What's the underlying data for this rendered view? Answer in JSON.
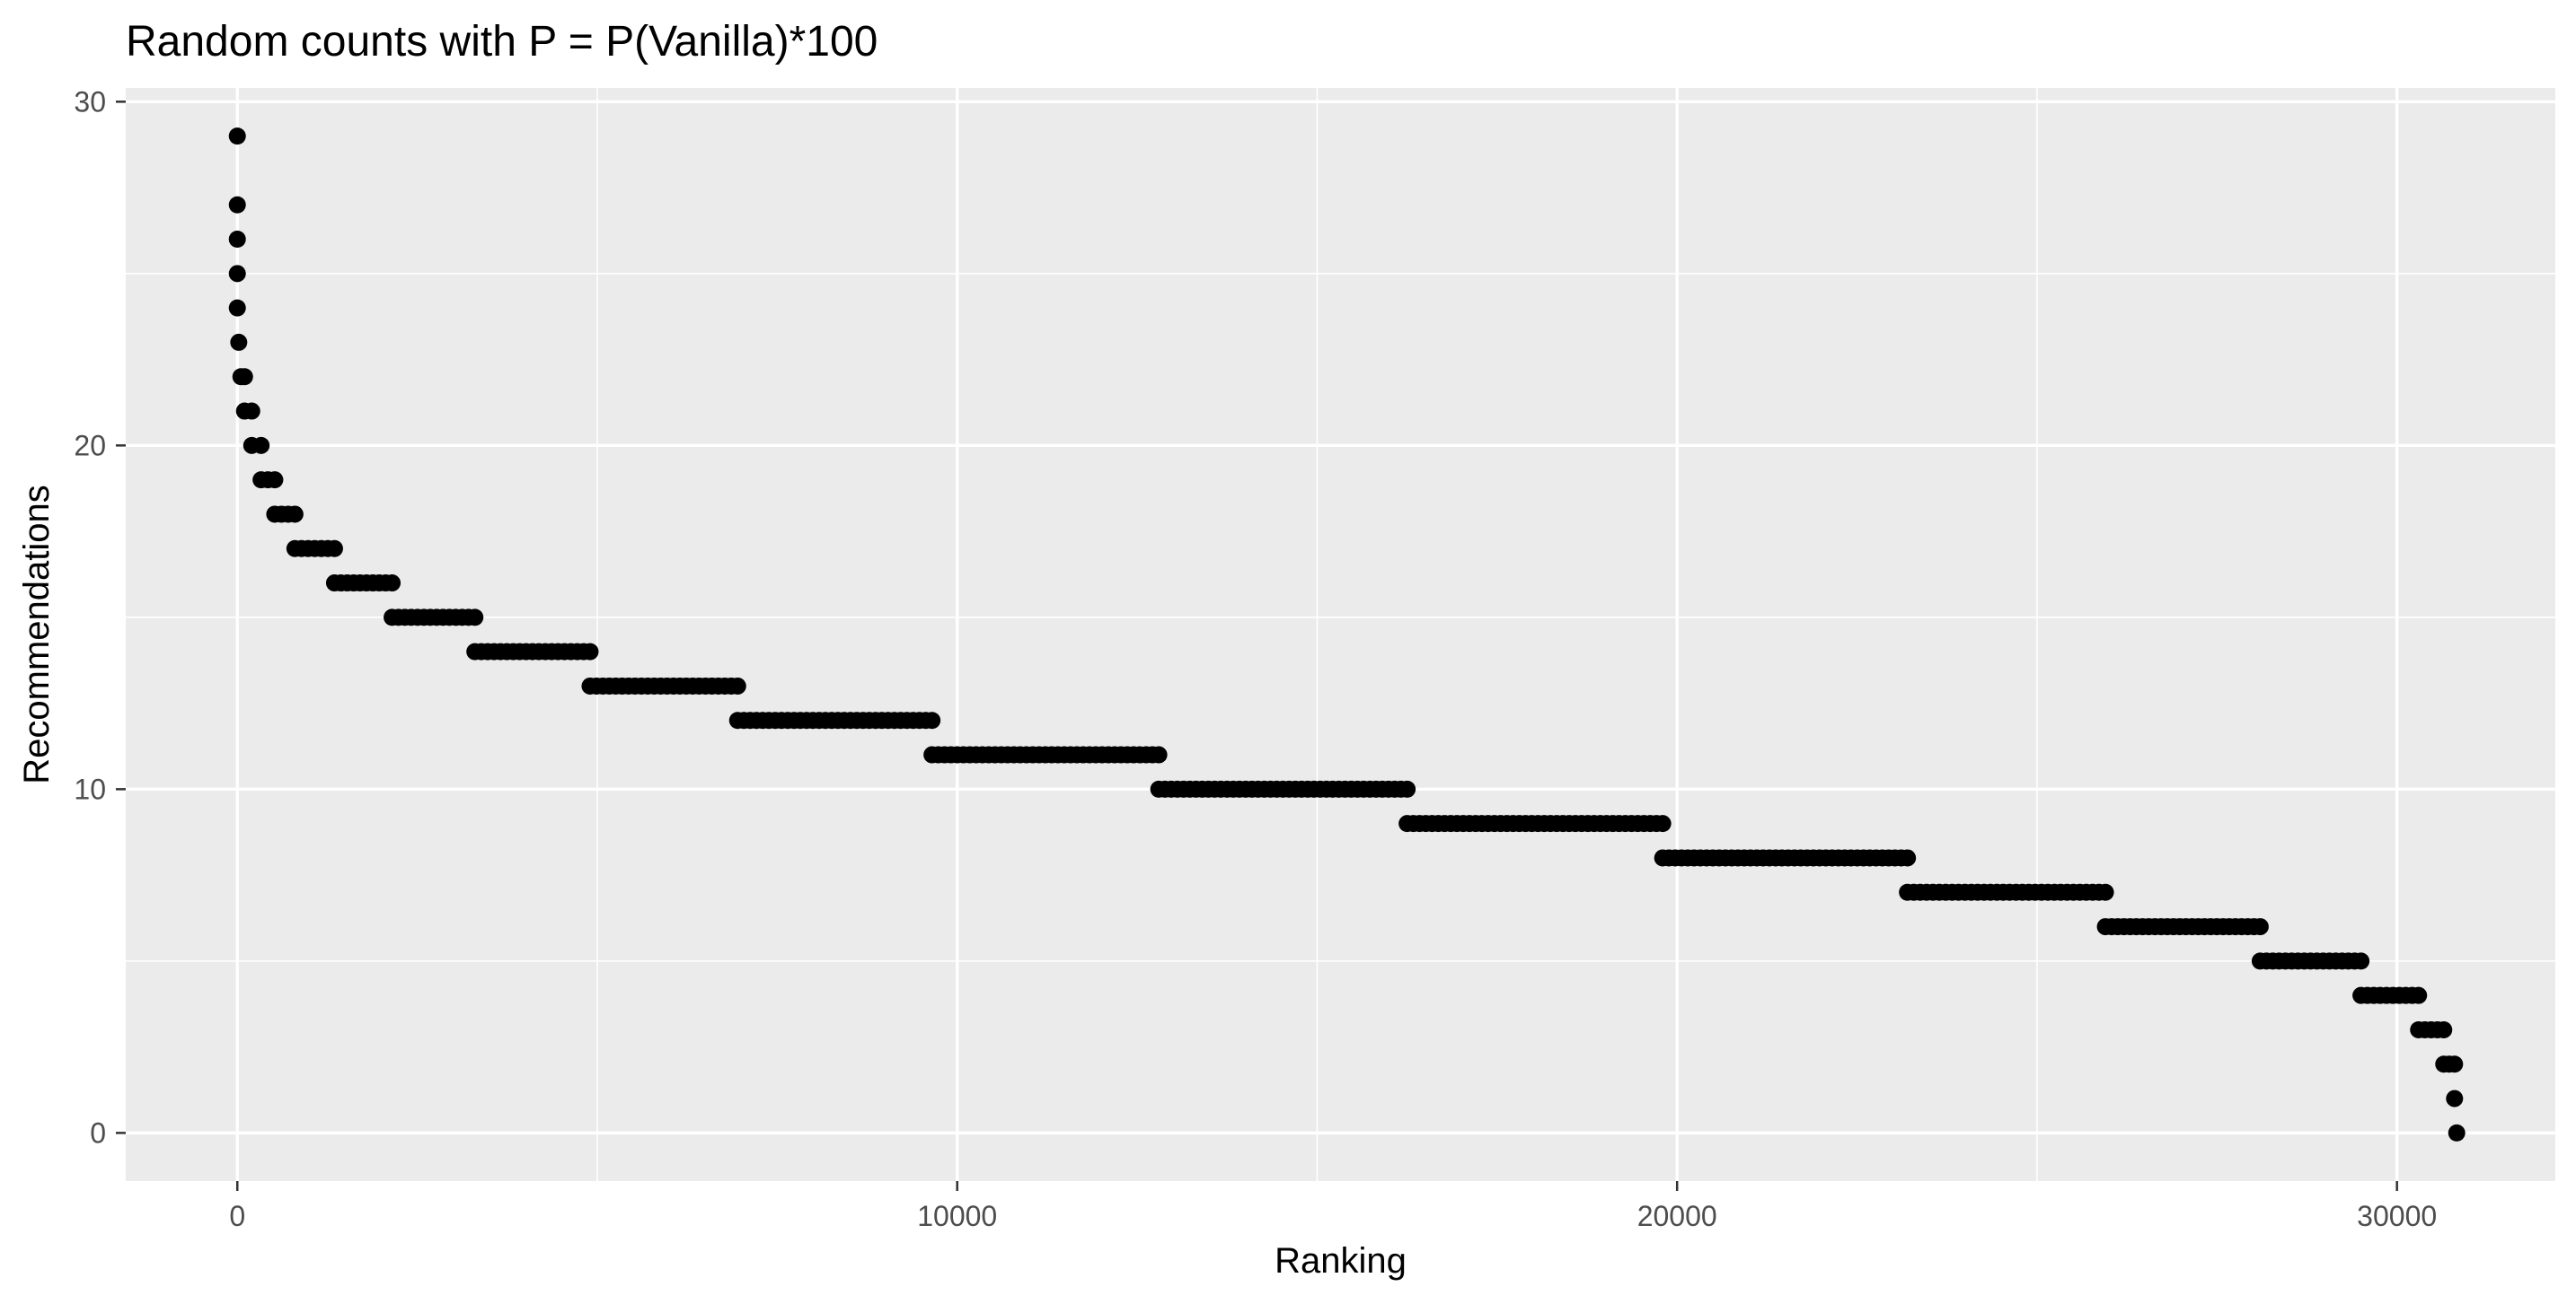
{
  "chart_data": {
    "type": "scatter",
    "title": "Random counts with P = P(Vanilla)*100",
    "xlabel": "Ranking",
    "ylabel": "Recommendations",
    "xlim": [
      -1550,
      32200
    ],
    "ylim": [
      -1.4,
      30.4
    ],
    "x_ticks": [
      0,
      10000,
      20000,
      30000
    ],
    "x_tick_labels": [
      "0",
      "10000",
      "20000",
      "30000"
    ],
    "y_ticks": [
      0,
      10,
      20,
      30
    ],
    "y_tick_labels": [
      "0",
      "10",
      "20",
      "30"
    ],
    "grid": true,
    "legend": "none",
    "colors": {
      "panel": "#ebebeb",
      "grid": "#ffffff",
      "point": "#000000",
      "tick": "#4d4d4d",
      "axis_tick_mark": "#333333"
    },
    "segments": [
      {
        "y": 29,
        "x_start": 0,
        "x_end": 0
      },
      {
        "y": 27,
        "x_start": 0,
        "x_end": 0
      },
      {
        "y": 26,
        "x_start": 0,
        "x_end": 0
      },
      {
        "y": 25,
        "x_start": 0,
        "x_end": 0
      },
      {
        "y": 24,
        "x_start": 0,
        "x_end": 20
      },
      {
        "y": 23,
        "x_start": 20,
        "x_end": 50
      },
      {
        "y": 22,
        "x_start": 50,
        "x_end": 100
      },
      {
        "y": 21,
        "x_start": 100,
        "x_end": 200
      },
      {
        "y": 20,
        "x_start": 200,
        "x_end": 330
      },
      {
        "y": 19,
        "x_start": 330,
        "x_end": 520
      },
      {
        "y": 18,
        "x_start": 520,
        "x_end": 800
      },
      {
        "y": 17,
        "x_start": 800,
        "x_end": 1350
      },
      {
        "y": 16,
        "x_start": 1350,
        "x_end": 2150
      },
      {
        "y": 15,
        "x_start": 2150,
        "x_end": 3300
      },
      {
        "y": 14,
        "x_start": 3300,
        "x_end": 4900
      },
      {
        "y": 13,
        "x_start": 4900,
        "x_end": 6950
      },
      {
        "y": 12,
        "x_start": 6950,
        "x_end": 9650
      },
      {
        "y": 11,
        "x_start": 9650,
        "x_end": 12800
      },
      {
        "y": 10,
        "x_start": 12800,
        "x_end": 16250
      },
      {
        "y": 9,
        "x_start": 16250,
        "x_end": 19800
      },
      {
        "y": 8,
        "x_start": 19800,
        "x_end": 23200
      },
      {
        "y": 7,
        "x_start": 23200,
        "x_end": 25950
      },
      {
        "y": 6,
        "x_start": 25950,
        "x_end": 28100
      },
      {
        "y": 5,
        "x_start": 28100,
        "x_end": 29500
      },
      {
        "y": 4,
        "x_start": 29500,
        "x_end": 30300
      },
      {
        "y": 3,
        "x_start": 30300,
        "x_end": 30650
      },
      {
        "y": 2,
        "x_start": 30650,
        "x_end": 30800
      },
      {
        "y": 1,
        "x_start": 30800,
        "x_end": 30830
      },
      {
        "y": 0,
        "x_start": 30830,
        "x_end": 30830
      }
    ]
  }
}
